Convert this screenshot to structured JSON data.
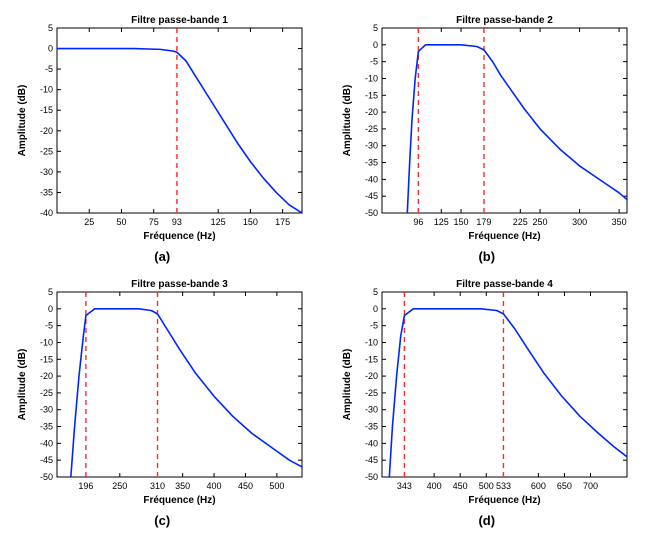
{
  "layout": {
    "cols": 2,
    "rows": 2
  },
  "common": {
    "axis_color": "#000000",
    "bg_color": "#ffffff",
    "line_color": "#0026ff",
    "dash_color": "#ff2a2a",
    "line_width": 1.6,
    "dash_width": 1.4,
    "dash_pattern": "5,4",
    "title_fontsize": 10,
    "tick_fontsize": 9,
    "axis_label_fontsize": 10,
    "caption_fontsize": 13,
    "xlabel": "Fréquence (Hz)",
    "ylabel": "Amplitude (dB)"
  },
  "panels": [
    {
      "title": "Filtre passe-bande 1",
      "caption": "(a)",
      "xlim": [
        0,
        190
      ],
      "ylim": [
        -40,
        5
      ],
      "xticks": [
        25,
        50,
        75,
        93,
        125,
        150,
        175
      ],
      "yticks": [
        -40,
        -35,
        -30,
        -25,
        -20,
        -15,
        -10,
        -5,
        0,
        5
      ],
      "dashes": [
        93
      ],
      "series": [
        {
          "x": 0,
          "y": 0
        },
        {
          "x": 60,
          "y": 0
        },
        {
          "x": 80,
          "y": -0.2
        },
        {
          "x": 90,
          "y": -0.6
        },
        {
          "x": 93,
          "y": -0.9
        },
        {
          "x": 100,
          "y": -3
        },
        {
          "x": 110,
          "y": -8
        },
        {
          "x": 120,
          "y": -13
        },
        {
          "x": 130,
          "y": -18
        },
        {
          "x": 140,
          "y": -23
        },
        {
          "x": 150,
          "y": -27.5
        },
        {
          "x": 160,
          "y": -31.5
        },
        {
          "x": 170,
          "y": -35
        },
        {
          "x": 180,
          "y": -38
        },
        {
          "x": 190,
          "y": -40
        }
      ]
    },
    {
      "title": "Filtre passe-bande 2",
      "caption": "(b)",
      "xlim": [
        50,
        360
      ],
      "ylim": [
        -50,
        5
      ],
      "xticks": [
        96,
        125,
        150,
        179,
        225,
        250,
        300,
        350
      ],
      "yticks": [
        -50,
        -45,
        -40,
        -35,
        -30,
        -25,
        -20,
        -15,
        -10,
        -5,
        0,
        5
      ],
      "dashes": [
        96,
        179
      ],
      "series": [
        {
          "x": 82,
          "y": -50
        },
        {
          "x": 85,
          "y": -35
        },
        {
          "x": 88,
          "y": -22
        },
        {
          "x": 92,
          "y": -10
        },
        {
          "x": 96,
          "y": -2
        },
        {
          "x": 105,
          "y": 0
        },
        {
          "x": 150,
          "y": 0
        },
        {
          "x": 170,
          "y": -0.5
        },
        {
          "x": 179,
          "y": -1.5
        },
        {
          "x": 190,
          "y": -5
        },
        {
          "x": 200,
          "y": -9
        },
        {
          "x": 215,
          "y": -14
        },
        {
          "x": 230,
          "y": -19
        },
        {
          "x": 250,
          "y": -25
        },
        {
          "x": 275,
          "y": -31
        },
        {
          "x": 300,
          "y": -36
        },
        {
          "x": 325,
          "y": -40
        },
        {
          "x": 350,
          "y": -44
        },
        {
          "x": 360,
          "y": -46
        }
      ]
    },
    {
      "title": "Filtre passe-bande 3",
      "caption": "(c)",
      "xlim": [
        150,
        540
      ],
      "ylim": [
        -50,
        5
      ],
      "xticks": [
        196,
        250,
        310,
        350,
        400,
        450,
        500
      ],
      "yticks": [
        -50,
        -45,
        -40,
        -35,
        -30,
        -25,
        -20,
        -15,
        -10,
        -5,
        0,
        5
      ],
      "dashes": [
        196,
        310
      ],
      "series": [
        {
          "x": 172,
          "y": -50
        },
        {
          "x": 178,
          "y": -35
        },
        {
          "x": 185,
          "y": -20
        },
        {
          "x": 192,
          "y": -8
        },
        {
          "x": 196,
          "y": -2
        },
        {
          "x": 210,
          "y": 0
        },
        {
          "x": 280,
          "y": 0
        },
        {
          "x": 300,
          "y": -0.5
        },
        {
          "x": 310,
          "y": -1.5
        },
        {
          "x": 325,
          "y": -6
        },
        {
          "x": 345,
          "y": -12
        },
        {
          "x": 370,
          "y": -19
        },
        {
          "x": 400,
          "y": -26
        },
        {
          "x": 430,
          "y": -32
        },
        {
          "x": 460,
          "y": -37
        },
        {
          "x": 490,
          "y": -41
        },
        {
          "x": 520,
          "y": -45
        },
        {
          "x": 540,
          "y": -47
        }
      ]
    },
    {
      "title": "Filtre passe-bande 4",
      "caption": "(d)",
      "xlim": [
        300,
        770
      ],
      "ylim": [
        -50,
        5
      ],
      "xticks": [
        343,
        400,
        450,
        500,
        533,
        600,
        650,
        700
      ],
      "yticks": [
        -50,
        -45,
        -40,
        -35,
        -30,
        -25,
        -20,
        -15,
        -10,
        -5,
        0,
        5
      ],
      "dashes": [
        343,
        533
      ],
      "series": [
        {
          "x": 314,
          "y": -50
        },
        {
          "x": 320,
          "y": -35
        },
        {
          "x": 328,
          "y": -20
        },
        {
          "x": 336,
          "y": -8
        },
        {
          "x": 343,
          "y": -2
        },
        {
          "x": 360,
          "y": 0
        },
        {
          "x": 490,
          "y": 0
        },
        {
          "x": 520,
          "y": -0.5
        },
        {
          "x": 533,
          "y": -1.5
        },
        {
          "x": 555,
          "y": -6
        },
        {
          "x": 580,
          "y": -12
        },
        {
          "x": 610,
          "y": -19
        },
        {
          "x": 645,
          "y": -26
        },
        {
          "x": 680,
          "y": -32
        },
        {
          "x": 715,
          "y": -37
        },
        {
          "x": 745,
          "y": -41
        },
        {
          "x": 770,
          "y": -44
        }
      ]
    }
  ]
}
